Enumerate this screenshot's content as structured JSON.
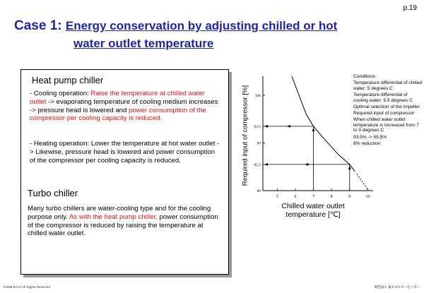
{
  "page": {
    "number": "p.19"
  },
  "title": {
    "case": "Case 1:",
    "line1": "Energy conservation by adjusting chilled or hot",
    "line2": "water outlet temperature"
  },
  "heat_pump": {
    "heading": "Heat pump chiller",
    "cooling": {
      "prefix": "- Cooling operation: ",
      "red1": "Raise the temperature at chilled water outlet",
      "mid": " -> evaporating temperature of cooling medium increases -> pressure head is lowered and ",
      "red2": "power consumption of the compressor per cooling capacity is reduced."
    },
    "heating": {
      "text": "- Heating operation: Lower the temperature at hot water outlet -> Likewise, pressure head is lowered and power consumption of the compressor per cooling capacity is reduced."
    }
  },
  "turbo": {
    "heading": "Turbo chiller",
    "text1": "Many turbo chillers are water-cooling type and for the cooling purpose only. ",
    "red": "As with the heat pump chiller,",
    "text2": " power consumption of the compressor is reduced by raising the temperature at chilled water outlet."
  },
  "conditions": {
    "heading": "Conditions",
    "items": [
      "Temperature differential of chilled water: 5 degrees C",
      "Temperature differential of cooling water: 5.5 degrees C",
      "Optimal selection of the impeller",
      "Required input of compressor",
      "When chilled water outlet temperature is increased from 7 to 9  degrees  C",
      "93.5% -> 85.5%",
      "8% reduction"
    ]
  },
  "chart_data": {
    "type": "line",
    "ylabel": "Required input of compressor  [%]",
    "xlabel_line1": "Chilled water outlet",
    "xlabel_line2": "temperature [℃]",
    "x_ticks": [
      "5",
      "6",
      "7",
      "8",
      "9",
      "10"
    ],
    "y_ticks": [
      "80",
      "85.5",
      "90",
      "93.5",
      "100"
    ],
    "xlim": [
      4.2,
      10.3
    ],
    "ylim": [
      80,
      104
    ],
    "series": [
      {
        "x": [
          5.8,
          6.6,
          7,
          7.6,
          8.4,
          9,
          9.3
        ],
        "y": [
          104,
          96,
          93.5,
          90.8,
          87.5,
          85.5,
          84
        ]
      },
      {
        "x": [
          9.4,
          9.6,
          9.8,
          10.0
        ],
        "y": [
          83.5,
          82.4,
          81.3,
          80.3
        ],
        "dashed": true
      }
    ],
    "markers": [
      {
        "x": 7,
        "y": 93.5
      },
      {
        "x": 9,
        "y": 85.5
      }
    ]
  },
  "footer": {
    "copyright": "©2008 ECCJ All Rights Reserved",
    "org": "財団法人 省エネルギーセンター"
  }
}
